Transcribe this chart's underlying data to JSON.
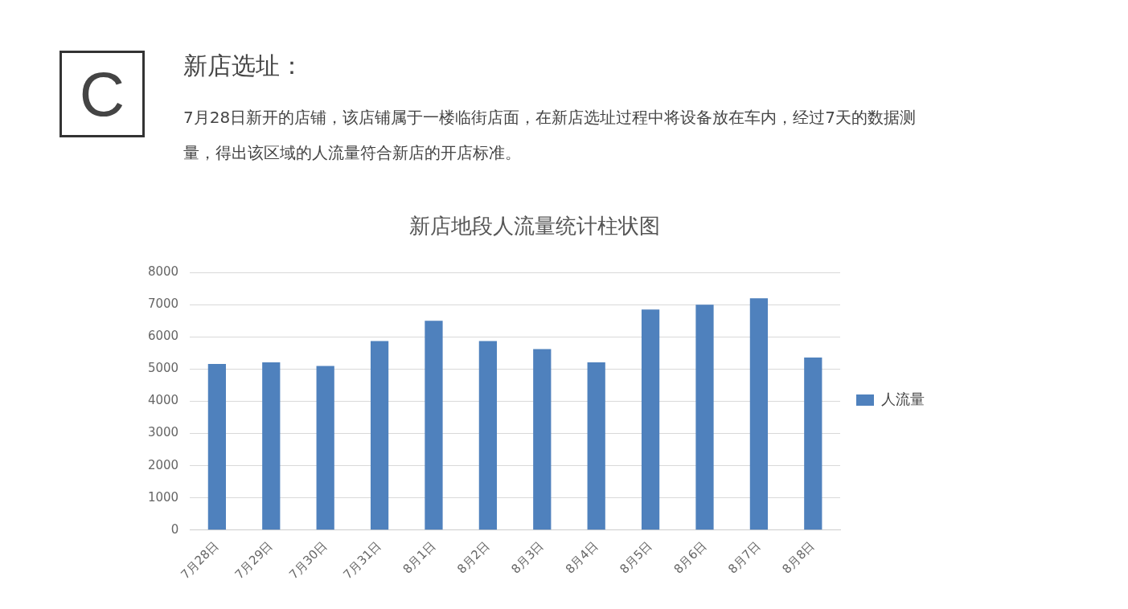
{
  "chart_data": {
    "type": "bar",
    "title": "新店地段人流量统计柱状图",
    "annotations": [
      "C",
      "新店选址：",
      "7月28日新开的店铺，该店铺属于一楼临街店面，在新店选址过程中将设备放在车内，经过7天的数据测量，得出该区域的人流量符合新店的开店标准。"
    ],
    "categories": [
      "7月28日",
      "7月29日",
      "7月30日",
      "7月31日",
      "8月1日",
      "8月2日",
      "8月3日",
      "8月4日",
      "8月5日",
      "8月6日",
      "8月7日",
      "8月8日"
    ],
    "series": [
      {
        "name": "人流量",
        "color": "#4f81bd",
        "values": [
          5160,
          5210,
          5100,
          5870,
          6500,
          5870,
          5620,
          5210,
          6850,
          7000,
          7200,
          5360
        ]
      }
    ],
    "ylim": [
      0,
      8000
    ],
    "yticks": [
      0,
      1000,
      2000,
      3000,
      4000,
      5000,
      6000,
      7000,
      8000
    ],
    "grid": "y",
    "legend": "right"
  }
}
